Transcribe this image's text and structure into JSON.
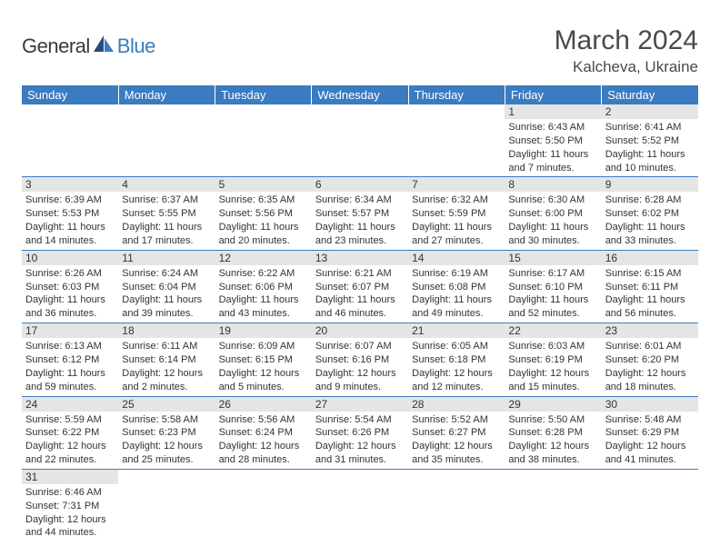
{
  "brand": {
    "text1": "General",
    "text2": "Blue"
  },
  "title": "March 2024",
  "location": "Kalcheva, Ukraine",
  "colors": {
    "header_bg": "#3b7bbf",
    "header_text": "#ffffff",
    "daynum_bg": "#e5e5e5",
    "row_border": "#3b7bbf",
    "logo_gray": "#3a3a3a",
    "logo_blue": "#3b7bbf"
  },
  "fonts": {
    "title_size": 30,
    "location_size": 17,
    "header_size": 13,
    "body_size": 11
  },
  "weekdays": [
    "Sunday",
    "Monday",
    "Tuesday",
    "Wednesday",
    "Thursday",
    "Friday",
    "Saturday"
  ],
  "weeks": [
    [
      {
        "n": "",
        "sr": "",
        "ss": "",
        "dl": ""
      },
      {
        "n": "",
        "sr": "",
        "ss": "",
        "dl": ""
      },
      {
        "n": "",
        "sr": "",
        "ss": "",
        "dl": ""
      },
      {
        "n": "",
        "sr": "",
        "ss": "",
        "dl": ""
      },
      {
        "n": "",
        "sr": "",
        "ss": "",
        "dl": ""
      },
      {
        "n": "1",
        "sr": "Sunrise: 6:43 AM",
        "ss": "Sunset: 5:50 PM",
        "dl": "Daylight: 11 hours and 7 minutes."
      },
      {
        "n": "2",
        "sr": "Sunrise: 6:41 AM",
        "ss": "Sunset: 5:52 PM",
        "dl": "Daylight: 11 hours and 10 minutes."
      }
    ],
    [
      {
        "n": "3",
        "sr": "Sunrise: 6:39 AM",
        "ss": "Sunset: 5:53 PM",
        "dl": "Daylight: 11 hours and 14 minutes."
      },
      {
        "n": "4",
        "sr": "Sunrise: 6:37 AM",
        "ss": "Sunset: 5:55 PM",
        "dl": "Daylight: 11 hours and 17 minutes."
      },
      {
        "n": "5",
        "sr": "Sunrise: 6:35 AM",
        "ss": "Sunset: 5:56 PM",
        "dl": "Daylight: 11 hours and 20 minutes."
      },
      {
        "n": "6",
        "sr": "Sunrise: 6:34 AM",
        "ss": "Sunset: 5:57 PM",
        "dl": "Daylight: 11 hours and 23 minutes."
      },
      {
        "n": "7",
        "sr": "Sunrise: 6:32 AM",
        "ss": "Sunset: 5:59 PM",
        "dl": "Daylight: 11 hours and 27 minutes."
      },
      {
        "n": "8",
        "sr": "Sunrise: 6:30 AM",
        "ss": "Sunset: 6:00 PM",
        "dl": "Daylight: 11 hours and 30 minutes."
      },
      {
        "n": "9",
        "sr": "Sunrise: 6:28 AM",
        "ss": "Sunset: 6:02 PM",
        "dl": "Daylight: 11 hours and 33 minutes."
      }
    ],
    [
      {
        "n": "10",
        "sr": "Sunrise: 6:26 AM",
        "ss": "Sunset: 6:03 PM",
        "dl": "Daylight: 11 hours and 36 minutes."
      },
      {
        "n": "11",
        "sr": "Sunrise: 6:24 AM",
        "ss": "Sunset: 6:04 PM",
        "dl": "Daylight: 11 hours and 39 minutes."
      },
      {
        "n": "12",
        "sr": "Sunrise: 6:22 AM",
        "ss": "Sunset: 6:06 PM",
        "dl": "Daylight: 11 hours and 43 minutes."
      },
      {
        "n": "13",
        "sr": "Sunrise: 6:21 AM",
        "ss": "Sunset: 6:07 PM",
        "dl": "Daylight: 11 hours and 46 minutes."
      },
      {
        "n": "14",
        "sr": "Sunrise: 6:19 AM",
        "ss": "Sunset: 6:08 PM",
        "dl": "Daylight: 11 hours and 49 minutes."
      },
      {
        "n": "15",
        "sr": "Sunrise: 6:17 AM",
        "ss": "Sunset: 6:10 PM",
        "dl": "Daylight: 11 hours and 52 minutes."
      },
      {
        "n": "16",
        "sr": "Sunrise: 6:15 AM",
        "ss": "Sunset: 6:11 PM",
        "dl": "Daylight: 11 hours and 56 minutes."
      }
    ],
    [
      {
        "n": "17",
        "sr": "Sunrise: 6:13 AM",
        "ss": "Sunset: 6:12 PM",
        "dl": "Daylight: 11 hours and 59 minutes."
      },
      {
        "n": "18",
        "sr": "Sunrise: 6:11 AM",
        "ss": "Sunset: 6:14 PM",
        "dl": "Daylight: 12 hours and 2 minutes."
      },
      {
        "n": "19",
        "sr": "Sunrise: 6:09 AM",
        "ss": "Sunset: 6:15 PM",
        "dl": "Daylight: 12 hours and 5 minutes."
      },
      {
        "n": "20",
        "sr": "Sunrise: 6:07 AM",
        "ss": "Sunset: 6:16 PM",
        "dl": "Daylight: 12 hours and 9 minutes."
      },
      {
        "n": "21",
        "sr": "Sunrise: 6:05 AM",
        "ss": "Sunset: 6:18 PM",
        "dl": "Daylight: 12 hours and 12 minutes."
      },
      {
        "n": "22",
        "sr": "Sunrise: 6:03 AM",
        "ss": "Sunset: 6:19 PM",
        "dl": "Daylight: 12 hours and 15 minutes."
      },
      {
        "n": "23",
        "sr": "Sunrise: 6:01 AM",
        "ss": "Sunset: 6:20 PM",
        "dl": "Daylight: 12 hours and 18 minutes."
      }
    ],
    [
      {
        "n": "24",
        "sr": "Sunrise: 5:59 AM",
        "ss": "Sunset: 6:22 PM",
        "dl": "Daylight: 12 hours and 22 minutes."
      },
      {
        "n": "25",
        "sr": "Sunrise: 5:58 AM",
        "ss": "Sunset: 6:23 PM",
        "dl": "Daylight: 12 hours and 25 minutes."
      },
      {
        "n": "26",
        "sr": "Sunrise: 5:56 AM",
        "ss": "Sunset: 6:24 PM",
        "dl": "Daylight: 12 hours and 28 minutes."
      },
      {
        "n": "27",
        "sr": "Sunrise: 5:54 AM",
        "ss": "Sunset: 6:26 PM",
        "dl": "Daylight: 12 hours and 31 minutes."
      },
      {
        "n": "28",
        "sr": "Sunrise: 5:52 AM",
        "ss": "Sunset: 6:27 PM",
        "dl": "Daylight: 12 hours and 35 minutes."
      },
      {
        "n": "29",
        "sr": "Sunrise: 5:50 AM",
        "ss": "Sunset: 6:28 PM",
        "dl": "Daylight: 12 hours and 38 minutes."
      },
      {
        "n": "30",
        "sr": "Sunrise: 5:48 AM",
        "ss": "Sunset: 6:29 PM",
        "dl": "Daylight: 12 hours and 41 minutes."
      }
    ],
    [
      {
        "n": "31",
        "sr": "Sunrise: 6:46 AM",
        "ss": "Sunset: 7:31 PM",
        "dl": "Daylight: 12 hours and 44 minutes."
      },
      {
        "n": "",
        "sr": "",
        "ss": "",
        "dl": ""
      },
      {
        "n": "",
        "sr": "",
        "ss": "",
        "dl": ""
      },
      {
        "n": "",
        "sr": "",
        "ss": "",
        "dl": ""
      },
      {
        "n": "",
        "sr": "",
        "ss": "",
        "dl": ""
      },
      {
        "n": "",
        "sr": "",
        "ss": "",
        "dl": ""
      },
      {
        "n": "",
        "sr": "",
        "ss": "",
        "dl": ""
      }
    ]
  ]
}
